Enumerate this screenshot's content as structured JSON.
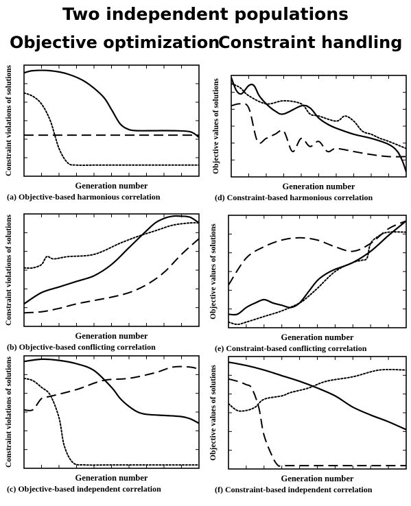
{
  "header": {
    "title": "Two independent populations",
    "left_column": "Objective optimization",
    "right_column": "Constraint handling"
  },
  "chart_data": [
    {
      "id": "a",
      "type": "line",
      "caption": "(a) Objective-based harmonious correlation",
      "xlabel": "Generation number",
      "ylabel": "Constraint violations of solutions",
      "xlim": [
        0,
        1
      ],
      "ylim": [
        0,
        1
      ],
      "series": [
        {
          "style": "solid",
          "x": [
            0,
            0.05,
            0.15,
            0.25,
            0.35,
            0.45,
            0.5,
            0.55,
            0.6,
            0.65,
            0.75,
            0.85,
            0.95,
            1
          ],
          "y": [
            0.93,
            0.95,
            0.95,
            0.92,
            0.85,
            0.72,
            0.6,
            0.47,
            0.42,
            0.41,
            0.41,
            0.41,
            0.4,
            0.35
          ]
        },
        {
          "style": "dotted",
          "x": [
            0,
            0.05,
            0.1,
            0.15,
            0.2,
            0.25,
            0.3,
            0.4,
            0.6,
            0.8,
            1
          ],
          "y": [
            0.75,
            0.72,
            0.65,
            0.5,
            0.25,
            0.12,
            0.1,
            0.1,
            0.1,
            0.1,
            0.1
          ]
        },
        {
          "style": "dashed",
          "x": [
            0,
            1
          ],
          "y": [
            0.37,
            0.37
          ]
        }
      ]
    },
    {
      "id": "b",
      "type": "line",
      "caption": "(b) Objective-based conflicting correlation",
      "xlabel": "Generation number",
      "ylabel": "Constraint violations of solutions",
      "xlim": [
        0,
        1
      ],
      "ylim": [
        0,
        1
      ],
      "series": [
        {
          "style": "solid",
          "x": [
            0,
            0.1,
            0.2,
            0.3,
            0.4,
            0.5,
            0.6,
            0.7,
            0.75,
            0.8,
            0.85,
            0.9,
            0.95,
            1
          ],
          "y": [
            0.2,
            0.3,
            0.35,
            0.4,
            0.45,
            0.55,
            0.7,
            0.85,
            0.92,
            0.96,
            0.98,
            0.98,
            0.97,
            0.92
          ]
        },
        {
          "style": "dotted",
          "x": [
            0,
            0.05,
            0.1,
            0.13,
            0.17,
            0.25,
            0.4,
            0.55,
            0.65,
            0.75,
            0.85,
            0.95,
            1
          ],
          "y": [
            0.52,
            0.52,
            0.55,
            0.62,
            0.6,
            0.62,
            0.64,
            0.74,
            0.8,
            0.85,
            0.9,
            0.92,
            0.92
          ]
        },
        {
          "style": "dashed",
          "x": [
            0,
            0.1,
            0.2,
            0.3,
            0.4,
            0.5,
            0.6,
            0.7,
            0.8,
            0.9,
            1
          ],
          "y": [
            0.12,
            0.13,
            0.16,
            0.2,
            0.23,
            0.26,
            0.3,
            0.37,
            0.48,
            0.64,
            0.78
          ]
        }
      ]
    },
    {
      "id": "c",
      "type": "line",
      "caption": "(c) Objective-based independent correlation",
      "xlabel": "Generation number",
      "ylabel": "Constraint violations of solutions",
      "xlim": [
        0,
        1
      ],
      "ylim": [
        0,
        1
      ],
      "series": [
        {
          "style": "solid",
          "x": [
            0,
            0.1,
            0.2,
            0.3,
            0.4,
            0.5,
            0.55,
            0.6,
            0.65,
            0.7,
            0.8,
            0.9,
            0.95,
            1
          ],
          "y": [
            0.95,
            0.97,
            0.96,
            0.93,
            0.87,
            0.72,
            0.62,
            0.55,
            0.5,
            0.48,
            0.47,
            0.46,
            0.44,
            0.4
          ]
        },
        {
          "style": "dotted",
          "x": [
            0,
            0.05,
            0.1,
            0.15,
            0.2,
            0.23,
            0.28,
            0.35,
            0.5,
            0.7,
            0.9,
            1
          ],
          "y": [
            0.8,
            0.78,
            0.72,
            0.65,
            0.45,
            0.2,
            0.05,
            0.03,
            0.03,
            0.03,
            0.03,
            0.03
          ]
        },
        {
          "style": "dashed",
          "x": [
            0,
            0.05,
            0.1,
            0.15,
            0.3,
            0.45,
            0.6,
            0.75,
            0.85,
            0.95,
            1
          ],
          "y": [
            0.52,
            0.52,
            0.62,
            0.64,
            0.7,
            0.78,
            0.8,
            0.85,
            0.9,
            0.9,
            0.88
          ]
        }
      ]
    },
    {
      "id": "d",
      "type": "line",
      "caption": "(d) Constraint-based harmonious correlation",
      "xlabel": "Generation number",
      "ylabel": "Objective values of solutions",
      "xlim": [
        0,
        1
      ],
      "ylim": [
        0,
        1
      ],
      "series": [
        {
          "style": "solid",
          "x": [
            0,
            0.03,
            0.06,
            0.1,
            0.13,
            0.16,
            0.2,
            0.25,
            0.3,
            0.4,
            0.45,
            0.5,
            0.55,
            0.6,
            0.7,
            0.8,
            0.9,
            0.95,
            0.98,
            1
          ],
          "y": [
            0.98,
            0.85,
            0.82,
            0.9,
            0.9,
            0.8,
            0.72,
            0.65,
            0.62,
            0.7,
            0.68,
            0.58,
            0.52,
            0.48,
            0.42,
            0.38,
            0.32,
            0.25,
            0.15,
            0.05
          ]
        },
        {
          "style": "dotted",
          "x": [
            0,
            0.05,
            0.1,
            0.2,
            0.3,
            0.4,
            0.45,
            0.5,
            0.6,
            0.65,
            0.7,
            0.75,
            0.8,
            0.85,
            0.9,
            1
          ],
          "y": [
            0.92,
            0.88,
            0.8,
            0.72,
            0.75,
            0.72,
            0.62,
            0.6,
            0.55,
            0.6,
            0.55,
            0.45,
            0.42,
            0.38,
            0.35,
            0.28
          ]
        },
        {
          "style": "dashed",
          "x": [
            0,
            0.05,
            0.1,
            0.15,
            0.2,
            0.25,
            0.3,
            0.35,
            0.4,
            0.45,
            0.5,
            0.55,
            0.6,
            0.7,
            0.8,
            0.9,
            1
          ],
          "y": [
            0.7,
            0.72,
            0.68,
            0.35,
            0.38,
            0.42,
            0.45,
            0.25,
            0.38,
            0.3,
            0.35,
            0.25,
            0.28,
            0.25,
            0.22,
            0.2,
            0.2
          ]
        }
      ]
    },
    {
      "id": "e",
      "type": "line",
      "caption": "(e) Constraint-based conflicting correlation",
      "xlabel": "Generation number",
      "ylabel": "Objective values of solutions",
      "xlim": [
        0,
        1
      ],
      "ylim": [
        0,
        1
      ],
      "series": [
        {
          "style": "solid",
          "x": [
            0,
            0.05,
            0.1,
            0.15,
            0.2,
            0.25,
            0.3,
            0.35,
            0.4,
            0.45,
            0.5,
            0.55,
            0.6,
            0.7,
            0.8,
            0.9,
            1
          ],
          "y": [
            0.12,
            0.12,
            0.18,
            0.22,
            0.25,
            0.22,
            0.2,
            0.18,
            0.22,
            0.32,
            0.42,
            0.48,
            0.52,
            0.58,
            0.68,
            0.82,
            0.95
          ]
        },
        {
          "style": "dotted",
          "x": [
            0,
            0.05,
            0.1,
            0.2,
            0.3,
            0.4,
            0.45,
            0.5,
            0.6,
            0.7,
            0.75,
            0.78,
            0.8,
            0.85,
            0.9,
            1
          ],
          "y": [
            0.05,
            0.03,
            0.05,
            0.1,
            0.15,
            0.22,
            0.28,
            0.35,
            0.5,
            0.58,
            0.6,
            0.62,
            0.75,
            0.82,
            0.85,
            0.85
          ]
        },
        {
          "style": "dashed",
          "x": [
            0,
            0.1,
            0.2,
            0.3,
            0.4,
            0.5,
            0.6,
            0.7,
            0.8,
            0.9,
            1
          ],
          "y": [
            0.38,
            0.62,
            0.72,
            0.78,
            0.8,
            0.78,
            0.72,
            0.68,
            0.75,
            0.88,
            0.95
          ]
        }
      ]
    },
    {
      "id": "f",
      "type": "line",
      "caption": "(f) Constraint-based independent correlation",
      "xlabel": "Generation number",
      "ylabel": "Objective values of solutions",
      "xlim": [
        0,
        1
      ],
      "ylim": [
        0,
        1
      ],
      "series": [
        {
          "style": "solid",
          "x": [
            0,
            0.1,
            0.2,
            0.3,
            0.4,
            0.5,
            0.6,
            0.7,
            0.8,
            0.9,
            1
          ],
          "y": [
            0.95,
            0.92,
            0.88,
            0.83,
            0.78,
            0.72,
            0.65,
            0.55,
            0.48,
            0.42,
            0.35
          ]
        },
        {
          "style": "dotted",
          "x": [
            0,
            0.05,
            0.1,
            0.15,
            0.2,
            0.3,
            0.35,
            0.45,
            0.55,
            0.7,
            0.85,
            1
          ],
          "y": [
            0.58,
            0.52,
            0.52,
            0.55,
            0.62,
            0.65,
            0.68,
            0.72,
            0.78,
            0.82,
            0.88,
            0.88
          ]
        },
        {
          "style": "dashed",
          "x": [
            0,
            0.05,
            0.1,
            0.13,
            0.17,
            0.2,
            0.25,
            0.28,
            0.3,
            0.4,
            0.6,
            0.8,
            1
          ],
          "y": [
            0.8,
            0.78,
            0.75,
            0.72,
            0.55,
            0.3,
            0.1,
            0.03,
            0.03,
            0.03,
            0.03,
            0.03,
            0.03
          ]
        }
      ]
    }
  ]
}
